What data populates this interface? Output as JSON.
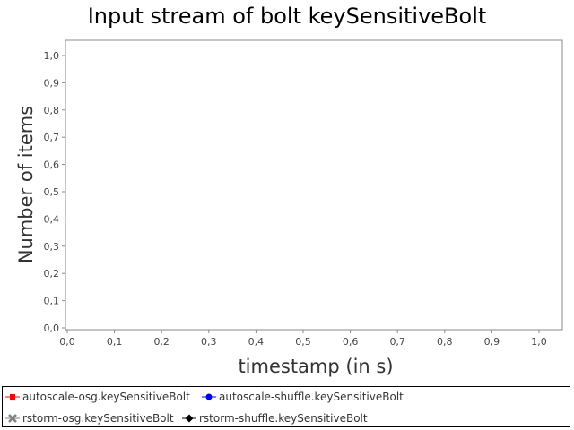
{
  "chart_data": {
    "type": "line",
    "title": "Input stream of bolt keySensitiveBolt",
    "xlabel": "timestamp (in s)",
    "ylabel": "Number of items",
    "xlim": [
      0.0,
      1.0
    ],
    "ylim": [
      0.0,
      1.0
    ],
    "x_ticks": [
      "0,0",
      "0,1",
      "0,2",
      "0,3",
      "0,4",
      "0,5",
      "0,6",
      "0,7",
      "0,8",
      "0,9",
      "1,0"
    ],
    "y_ticks": [
      "0,0",
      "0,1",
      "0,2",
      "0,3",
      "0,4",
      "0,5",
      "0,6",
      "0,7",
      "0,8",
      "0,9",
      "1,0"
    ],
    "grid": false,
    "legend_position": "bottom",
    "series": [
      {
        "name": "autoscale-osg.keySensitiveBolt",
        "color": "#ff0000",
        "marker": "square",
        "values": []
      },
      {
        "name": "autoscale-shuffle.keySensitiveBolt",
        "color": "#0000ff",
        "marker": "circle",
        "values": []
      },
      {
        "name": "rstorm-osg.keySensitiveBolt",
        "color": "#808080",
        "marker": "cross",
        "values": []
      },
      {
        "name": "rstorm-shuffle.keySensitiveBolt",
        "color": "#000000",
        "marker": "diamond",
        "values": []
      }
    ]
  }
}
